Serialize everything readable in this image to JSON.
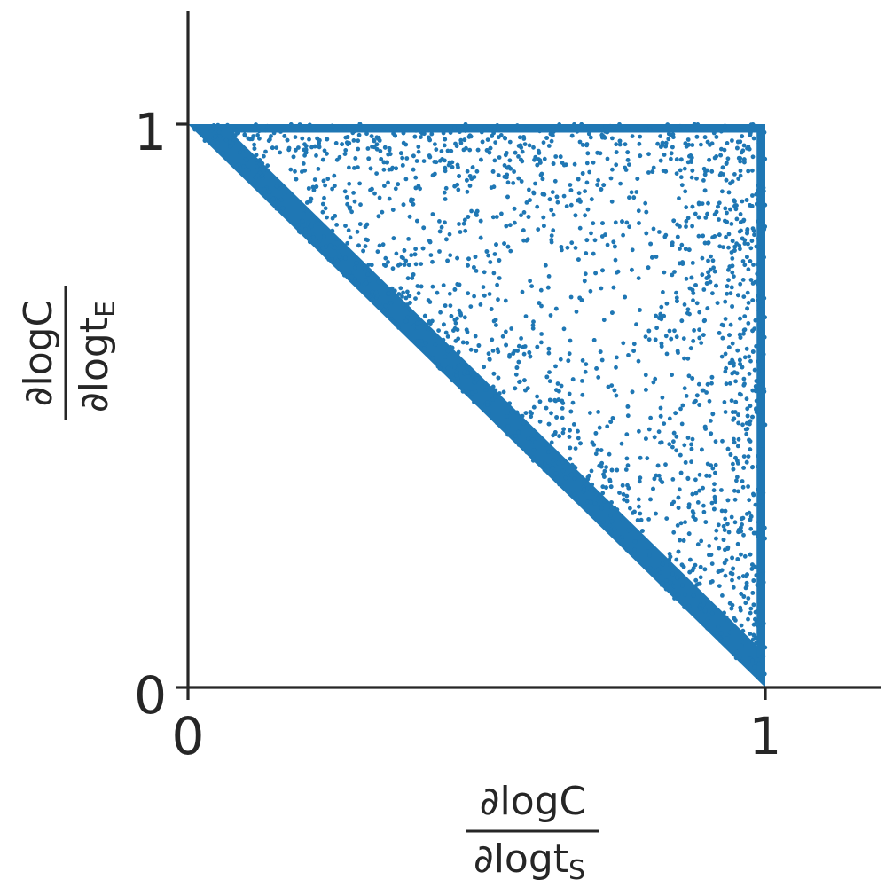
{
  "chart_data": {
    "type": "scatter",
    "title": "",
    "xlabel": {
      "numerator": "∂logC",
      "denominator_main": "∂logt",
      "denominator_sub": "S"
    },
    "ylabel": {
      "numerator": "∂logC",
      "denominator_main": "∂logt",
      "denominator_sub": "E"
    },
    "xlim": [
      0,
      1.2
    ],
    "ylim": [
      0,
      1.2
    ],
    "xticks": [
      "0",
      "1"
    ],
    "yticks": [
      "0",
      "1"
    ],
    "grid": false,
    "legend": "none",
    "series": [
      {
        "color": "#1f77b4",
        "region": "points fill the triangle bounded by x + y >= 1, x <= 1, y <= 1; densest along the three edges, sparser in the interior",
        "x_range": [
          0,
          1
        ],
        "y_range": [
          0,
          1
        ]
      }
    ],
    "marker_color": "#1f77b4"
  }
}
